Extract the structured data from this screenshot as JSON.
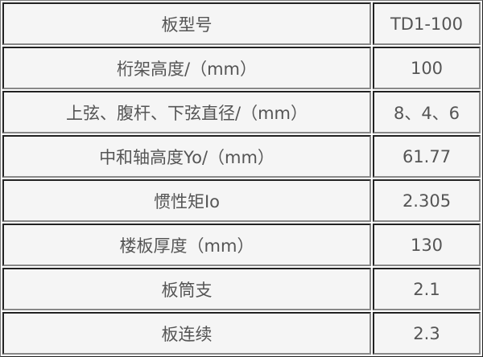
{
  "rows": [
    {
      "label": "板型号",
      "value": "TD1-100"
    },
    {
      "label": "桁架高度/（mm）",
      "value": "100"
    },
    {
      "label": "上弦、腹杆、下弦直径/（mm）",
      "value": "8、4、6"
    },
    {
      "label": "中和轴高度Yo/（mm）",
      "value": "61.77"
    },
    {
      "label": "惯性矩Io",
      "value": "2.305"
    },
    {
      "label": "楼板厚度（mm）",
      "value": "130"
    },
    {
      "label": "板筒支",
      "value": "2.1"
    },
    {
      "label": "板连续",
      "value": "2.3"
    }
  ]
}
